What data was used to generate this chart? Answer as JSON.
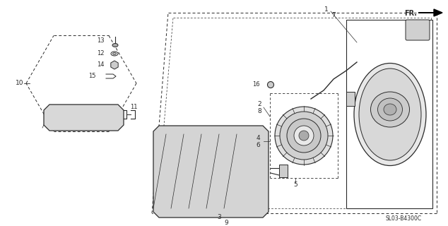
{
  "bg_color": "#ffffff",
  "line_color": "#2a2a2a",
  "fig_width": 6.34,
  "fig_height": 3.2,
  "dpi": 100,
  "watermark": "SL03-B4300C",
  "fr_label": "FR."
}
